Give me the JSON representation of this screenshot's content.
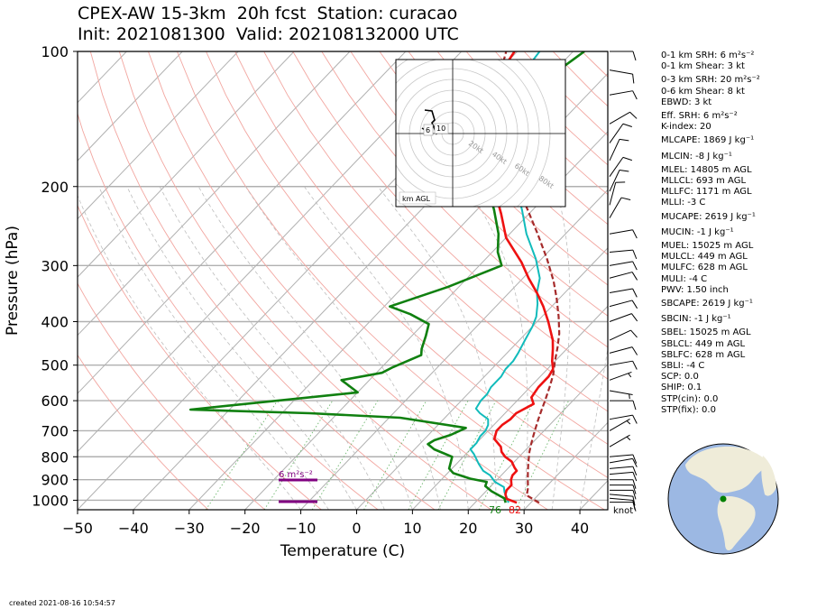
{
  "header": {
    "title_line1": "CPEX-AW 15-3km  20h fcst  Station: curacao",
    "title_line2": "Init: 2021081300  Valid: 202108132000 UTC"
  },
  "footer": {
    "created": "created 2021-08-16 10:54:57"
  },
  "stats": [
    "0-1 km SRH: 6 m²s⁻²",
    "0-1 km Shear: 3 kt",
    "0-3 km SRH: 20 m²s⁻²",
    "0-6 km Shear: 8 kt",
    "EBWD: 3 kt",
    "Eff. SRH: 6 m²s⁻²",
    "K-index: 20",
    "MLCAPE: 1869 J kg⁻¹",
    "MLCIN: -8 J kg⁻¹",
    "MLEL: 14805 m AGL",
    "MLLCL: 693 m AGL",
    "MLLFC: 1171 m AGL",
    "MLLI: -3 C",
    "MUCAPE: 2619 J kg⁻¹",
    "MUCIN: -1 J kg⁻¹",
    "MUEL: 15025 m AGL",
    "MULCL: 449 m AGL",
    "MULFC: 628 m AGL",
    "MULI: -4 C",
    "PWV: 1.50 inch",
    "SBCAPE: 2619 J kg⁻¹",
    "SBCIN: -1 J kg⁻¹",
    "SBEL: 15025 m AGL",
    "SBLCL: 449 m AGL",
    "SBLFC: 628 m AGL",
    "SBLI: -4 C",
    "SCP: 0.0",
    "SHIP: 0.1",
    "STP(cin): 0.0",
    "STP(fix): 0.0"
  ],
  "hodograph": {
    "labels": [
      "20kt",
      "40kt",
      "60kt",
      "80kt"
    ],
    "height_labels": [
      "6",
      "10"
    ],
    "unit_box": "km AGL"
  },
  "chart_data": {
    "type": "line",
    "xlabel": "Temperature (C)",
    "ylabel": "Pressure (hPa)",
    "xlim": [
      -50,
      45
    ],
    "ylim": [
      1050,
      100
    ],
    "y_scale": "log",
    "x_ticks": [
      "−50",
      "−40",
      "−30",
      "−20",
      "−10",
      "0",
      "10",
      "20",
      "30",
      "40"
    ],
    "y_ticks": [
      "100",
      "200",
      "300",
      "400",
      "500",
      "600",
      "700",
      "800",
      "900",
      "1000"
    ],
    "barb_unit": "knot",
    "surface_dewpoint_label": "76",
    "surface_temperature_label": "82",
    "srh_bar_label": "6 m²s⁻²",
    "colors": {
      "temperature": "#ee1111",
      "dewpoint": "#108010",
      "wetbulb": "#11bbbb",
      "parcel": "#a52a2a",
      "srh_bar": "#800080"
    },
    "series": [
      {
        "name": "Temperature",
        "points": [
          [
            27.5,
            1013
          ],
          [
            25,
            993
          ],
          [
            24,
            970
          ],
          [
            23.5,
            950
          ],
          [
            23.5,
            925
          ],
          [
            22.5,
            900
          ],
          [
            22,
            880
          ],
          [
            22,
            860
          ],
          [
            21,
            845
          ],
          [
            19.5,
            820
          ],
          [
            17.5,
            800
          ],
          [
            16,
            780
          ],
          [
            15,
            760
          ],
          [
            12.5,
            730
          ],
          [
            11.5,
            700
          ],
          [
            11.5,
            680
          ],
          [
            12,
            660
          ],
          [
            12,
            640
          ],
          [
            13.5,
            610
          ],
          [
            12,
            590
          ],
          [
            11.5,
            560
          ],
          [
            11.5,
            530
          ],
          [
            11,
            510
          ],
          [
            9.5,
            490
          ],
          [
            7.5,
            460
          ],
          [
            6,
            440
          ],
          [
            2,
            400
          ],
          [
            -1.5,
            370
          ],
          [
            -5,
            345
          ],
          [
            -9,
            320
          ],
          [
            -13,
            295
          ],
          [
            -20,
            260
          ],
          [
            -25,
            230
          ],
          [
            -31,
            200
          ],
          [
            -38,
            170
          ],
          [
            -44,
            145
          ],
          [
            -47,
            128
          ],
          [
            -49,
            115
          ],
          [
            -50.5,
            100
          ]
        ]
      },
      {
        "name": "Dewpoint",
        "points": [
          [
            25.5,
            1013
          ],
          [
            24.5,
            990
          ],
          [
            23,
            975
          ],
          [
            21,
            955
          ],
          [
            19,
            930
          ],
          [
            18.5,
            910
          ],
          [
            15,
            895
          ],
          [
            11,
            870
          ],
          [
            9.5,
            850
          ],
          [
            8,
            800
          ],
          [
            3.5,
            770
          ],
          [
            1.5,
            750
          ],
          [
            2,
            735
          ],
          [
            4,
            715
          ],
          [
            5.5,
            690
          ],
          [
            -8,
            655
          ],
          [
            -25,
            640
          ],
          [
            -47,
            628
          ],
          [
            -20,
            575
          ],
          [
            -25,
            540
          ],
          [
            -19,
            520
          ],
          [
            -18,
            505
          ],
          [
            -15,
            475
          ],
          [
            -16,
            460
          ],
          [
            -17.5,
            430
          ],
          [
            -19,
            405
          ],
          [
            -24,
            385
          ],
          [
            -29,
            370
          ],
          [
            -22,
            335
          ],
          [
            -16,
            300
          ],
          [
            -19,
            280
          ],
          [
            -22,
            255
          ],
          [
            -27,
            225
          ],
          [
            -30,
            210
          ],
          [
            -29,
            195
          ],
          [
            -31,
            175
          ],
          [
            -37,
            150
          ],
          [
            -41,
            135
          ],
          [
            -42,
            125
          ],
          [
            -40,
            115
          ],
          [
            -38,
            100
          ]
        ]
      },
      {
        "name": "Wet-bulb",
        "points": [
          [
            26,
            1013
          ],
          [
            25,
            990
          ],
          [
            23.5,
            960
          ],
          [
            22.5,
            935
          ],
          [
            20,
            910
          ],
          [
            18,
            880
          ],
          [
            16,
            860
          ],
          [
            14,
            830
          ],
          [
            11.5,
            790
          ],
          [
            10,
            770
          ],
          [
            10,
            745
          ],
          [
            9.5,
            720
          ],
          [
            9.5,
            700
          ],
          [
            9,
            680
          ],
          [
            8,
            660
          ],
          [
            5.5,
            640
          ],
          [
            4,
            625
          ],
          [
            3.5,
            600
          ],
          [
            3.5,
            580
          ],
          [
            3,
            560
          ],
          [
            3,
            530
          ],
          [
            2.5,
            510
          ],
          [
            2.5,
            490
          ],
          [
            2,
            470
          ],
          [
            1,
            440
          ],
          [
            0,
            410
          ],
          [
            -1,
            390
          ],
          [
            -3,
            365
          ],
          [
            -5,
            345
          ],
          [
            -7,
            320
          ],
          [
            -11,
            290
          ],
          [
            -17,
            255
          ],
          [
            -22,
            225
          ],
          [
            -27,
            200
          ],
          [
            -34,
            170
          ],
          [
            -40,
            145
          ],
          [
            -43,
            128
          ],
          [
            -45,
            115
          ],
          [
            -46,
            100
          ]
        ]
      },
      {
        "name": "Parcel",
        "points": [
          [
            31.5,
            1013
          ],
          [
            28,
            975
          ],
          [
            27,
            940
          ],
          [
            25.5,
            900
          ],
          [
            24,
            860
          ],
          [
            22.5,
            820
          ],
          [
            21,
            780
          ],
          [
            20,
            750
          ],
          [
            19,
            720
          ],
          [
            18,
            690
          ],
          [
            17,
            660
          ],
          [
            16,
            630
          ],
          [
            15,
            600
          ],
          [
            13.5,
            560
          ],
          [
            12,
            525
          ],
          [
            10,
            490
          ],
          [
            8,
            455
          ],
          [
            6,
            425
          ],
          [
            3,
            390
          ],
          [
            -0.5,
            355
          ],
          [
            -4,
            325
          ],
          [
            -9,
            290
          ],
          [
            -15,
            255
          ],
          [
            -21,
            225
          ],
          [
            -28,
            195
          ],
          [
            -35,
            165
          ],
          [
            -42,
            140
          ],
          [
            -48,
            118
          ],
          [
            -52,
            100
          ]
        ]
      }
    ],
    "wind_barbs": [
      {
        "p": 1010,
        "dir": 90,
        "spd": 10
      },
      {
        "p": 990,
        "dir": 95,
        "spd": 10
      },
      {
        "p": 970,
        "dir": 95,
        "spd": 10
      },
      {
        "p": 950,
        "dir": 90,
        "spd": 10
      },
      {
        "p": 925,
        "dir": 90,
        "spd": 10
      },
      {
        "p": 900,
        "dir": 90,
        "spd": 10
      },
      {
        "p": 875,
        "dir": 85,
        "spd": 10
      },
      {
        "p": 850,
        "dir": 85,
        "spd": 10
      },
      {
        "p": 825,
        "dir": 80,
        "spd": 10
      },
      {
        "p": 800,
        "dir": 85,
        "spd": 10
      },
      {
        "p": 760,
        "dir": 60,
        "spd": 5
      },
      {
        "p": 700,
        "dir": 60,
        "spd": 5
      },
      {
        "p": 660,
        "dir": 80,
        "spd": 10
      },
      {
        "p": 600,
        "dir": 90,
        "spd": 10
      },
      {
        "p": 570,
        "dir": 100,
        "spd": 5
      },
      {
        "p": 540,
        "dir": 70,
        "spd": 5
      },
      {
        "p": 500,
        "dir": 80,
        "spd": 10
      },
      {
        "p": 470,
        "dir": 75,
        "spd": 10
      },
      {
        "p": 440,
        "dir": 65,
        "spd": 10
      },
      {
        "p": 400,
        "dir": 70,
        "spd": 10
      },
      {
        "p": 370,
        "dir": 75,
        "spd": 10
      },
      {
        "p": 345,
        "dir": 80,
        "spd": 10
      },
      {
        "p": 320,
        "dir": 75,
        "spd": 10
      },
      {
        "p": 300,
        "dir": 80,
        "spd": 10
      },
      {
        "p": 280,
        "dir": 85,
        "spd": 10
      },
      {
        "p": 255,
        "dir": 80,
        "spd": 10
      },
      {
        "p": 235,
        "dir": 30,
        "spd": 10
      },
      {
        "p": 220,
        "dir": 15,
        "spd": 10
      },
      {
        "p": 205,
        "dir": 25,
        "spd": 10
      },
      {
        "p": 190,
        "dir": 35,
        "spd": 10
      },
      {
        "p": 175,
        "dir": 25,
        "spd": 10
      },
      {
        "p": 160,
        "dir": 35,
        "spd": 10
      },
      {
        "p": 145,
        "dir": 60,
        "spd": 10
      },
      {
        "p": 125,
        "dir": 80,
        "spd": 10
      },
      {
        "p": 110,
        "dir": 100,
        "spd": 10
      },
      {
        "p": 100,
        "dir": 90,
        "spd": 10
      }
    ]
  }
}
